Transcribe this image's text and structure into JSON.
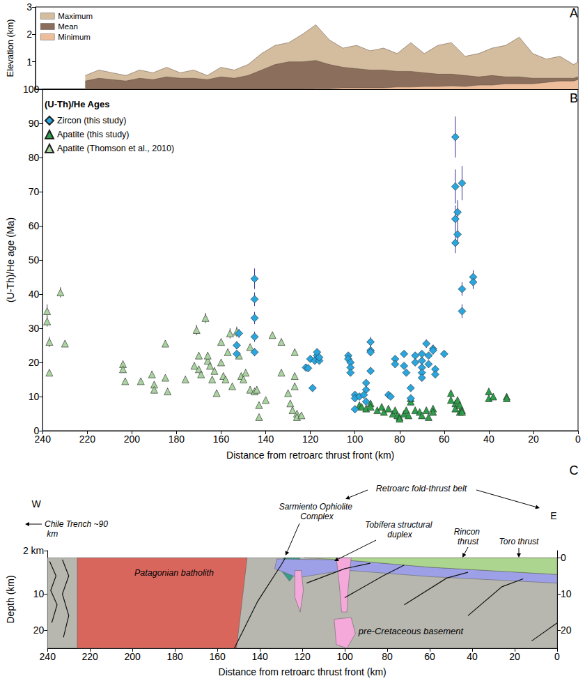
{
  "chart_data": [
    {
      "type": "area",
      "title": "A",
      "y_label": "Elevation (km)",
      "xlim": [
        240,
        0
      ],
      "ylim": [
        0,
        3
      ],
      "yticks": [
        1,
        2,
        3
      ],
      "tick_labels": "y",
      "grid": false,
      "legend": "top-left",
      "x": [
        218,
        212,
        206,
        200,
        194,
        188,
        182,
        176,
        170,
        164,
        158,
        152,
        146,
        140,
        134,
        128,
        122,
        116,
        110,
        104,
        98,
        92,
        86,
        80,
        74,
        68,
        62,
        56,
        50,
        44,
        38,
        32,
        26,
        20,
        14,
        8,
        2,
        0
      ],
      "series": [
        {
          "name": "Maximum",
          "color": "#d4bc9e",
          "values": [
            0.5,
            0.7,
            0.6,
            0.5,
            0.7,
            0.6,
            0.8,
            0.6,
            0.7,
            0.5,
            0.8,
            0.7,
            0.9,
            1.3,
            1.6,
            1.7,
            2.0,
            2.35,
            1.8,
            1.5,
            1.6,
            1.4,
            1.5,
            1.3,
            1.7,
            1.3,
            1.6,
            1.7,
            1.2,
            1.3,
            1.5,
            1.6,
            1.9,
            1.3,
            1.1,
            1.2,
            0.9,
            1.0
          ]
        },
        {
          "name": "Mean",
          "color": "#8b6e5c",
          "values": [
            0.3,
            0.4,
            0.35,
            0.3,
            0.4,
            0.35,
            0.45,
            0.4,
            0.4,
            0.35,
            0.45,
            0.4,
            0.5,
            0.7,
            0.9,
            1.0,
            1.0,
            1.05,
            0.9,
            0.8,
            0.75,
            0.7,
            0.7,
            0.65,
            0.65,
            0.6,
            0.55,
            0.55,
            0.5,
            0.45,
            0.5,
            0.45,
            0.45,
            0.4,
            0.4,
            0.4,
            0.4,
            0.45
          ]
        },
        {
          "name": "Minimum",
          "color": "#edbd9c",
          "values": [
            0,
            0,
            0,
            0,
            0,
            0,
            0,
            0,
            0,
            0,
            0,
            0,
            0,
            0,
            0,
            0,
            0,
            0.02,
            0.02,
            0.05,
            0.05,
            0.05,
            0.05,
            0.08,
            0.08,
            0.1,
            0.1,
            0.12,
            0.1,
            0.15,
            0.15,
            0.2,
            0.2,
            0.2,
            0.25,
            0.3,
            0.3,
            0.35
          ]
        }
      ]
    },
    {
      "type": "scatter",
      "title": "B",
      "x_label": "Distance from retroarc thrust front (km)",
      "y_label": "(U-Th)/He age (Ma)",
      "xlim": [
        240,
        0
      ],
      "xticks": [
        240,
        220,
        200,
        180,
        160,
        140,
        120,
        100,
        80,
        60,
        40,
        20,
        0
      ],
      "ylim": [
        0,
        100
      ],
      "yticks": [
        0,
        10,
        20,
        30,
        40,
        50,
        60,
        70,
        80,
        90,
        100
      ],
      "grid": false,
      "legend": "top-left",
      "annotations": [
        {
          "text": "(U-Th)/He Ages"
        }
      ],
      "series": [
        {
          "name": "Zircon (this study)",
          "color": "#2aa6de",
          "marker": "diamond",
          "x": [
            153,
            153,
            152,
            145,
            145,
            145,
            145,
            145,
            122,
            121,
            120,
            119,
            118,
            117,
            117,
            116,
            116,
            103,
            103,
            102,
            102,
            102,
            100,
            100,
            100,
            98,
            95,
            95,
            96,
            95,
            93,
            93,
            93,
            93,
            85,
            84,
            82,
            82,
            78,
            78,
            77,
            75,
            75,
            73,
            73,
            70,
            70,
            70,
            70,
            70,
            68,
            67,
            67,
            65,
            65,
            64,
            64,
            60,
            55,
            55,
            55,
            55,
            54,
            54,
            52,
            52,
            52,
            47,
            47
          ],
          "values": [
            22.5,
            25,
            28.5,
            44.5,
            38.5,
            33,
            27.5,
            23,
            18.5,
            18.3,
            21,
            12.5,
            20.5,
            22,
            23,
            20.5,
            21.5,
            22,
            21,
            20,
            18.5,
            17,
            10.5,
            9.5,
            6.3,
            10,
            14,
            12,
            10.5,
            8.5,
            26,
            23.5,
            23,
            17.5,
            10.5,
            10,
            21,
            19.5,
            22.5,
            19,
            17,
            12.5,
            9.5,
            22,
            20,
            22.5,
            20.5,
            18.5,
            17,
            15.5,
            25.5,
            22,
            19.5,
            24,
            23.5,
            18,
            16.5,
            22.5,
            86,
            71.5,
            62,
            55,
            64,
            57.5,
            72.5,
            41.5,
            35,
            45,
            43.5
          ],
          "errors": [
            1,
            1.2,
            1.3,
            3,
            2,
            1.8,
            1.5,
            1.2,
            1,
            1,
            1,
            0.8,
            1,
            1,
            1,
            1,
            1,
            1,
            1,
            1,
            1,
            1,
            0.8,
            0.8,
            0.6,
            0.8,
            0.8,
            0.8,
            0.8,
            0.7,
            1.5,
            1.2,
            1.2,
            1,
            0.8,
            0.8,
            1,
            1,
            1,
            1,
            1,
            0.8,
            0.8,
            1,
            1,
            1,
            1,
            1,
            1,
            1,
            1.2,
            1,
            1,
            1.2,
            1.2,
            1,
            1,
            1,
            6,
            5,
            4,
            3,
            3.5,
            3,
            5,
            2,
            2,
            2,
            2
          ]
        },
        {
          "name": "Apatite (this study)",
          "color": "#2e9e4a",
          "marker": "triangle",
          "x": [
            98,
            97,
            95,
            93,
            93,
            90,
            88,
            87,
            85,
            83,
            82,
            81,
            80,
            80,
            78,
            77,
            76,
            75,
            75,
            73,
            71,
            70,
            68,
            67,
            65,
            65,
            57,
            57,
            55,
            55,
            54,
            53,
            53,
            52,
            52,
            40,
            40,
            38,
            32,
            32
          ],
          "values": [
            7.5,
            7,
            6.5,
            8,
            7,
            6,
            7,
            5.5,
            6.5,
            5,
            6,
            4.5,
            4,
            3.5,
            5,
            6,
            4.5,
            8.5,
            9.5,
            6,
            5.5,
            4.5,
            6,
            4,
            6.5,
            5.5,
            11,
            9,
            8,
            6.5,
            9,
            7.5,
            5.5,
            6,
            5.5,
            11.5,
            9.5,
            10,
            10,
            9.5
          ],
          "errors": [
            0.5,
            0.5,
            0.5,
            0.6,
            0.5,
            0.5,
            0.5,
            0.5,
            0.5,
            0.5,
            0.5,
            0.5,
            0.4,
            0.4,
            0.5,
            0.5,
            0.5,
            0.6,
            0.8,
            0.5,
            0.5,
            0.5,
            0.5,
            0.4,
            0.5,
            0.5,
            0.8,
            0.8,
            0.6,
            0.5,
            0.8,
            0.6,
            0.5,
            0.5,
            0.5,
            0.8,
            0.8,
            0.8,
            0.8,
            0.8
          ]
        },
        {
          "name": "Apatite (Thomson et al., 2010)",
          "color": "#a9d4a0",
          "marker": "triangle",
          "x": [
            238,
            238,
            237,
            237,
            232,
            230,
            204,
            204,
            203,
            196,
            191,
            190,
            190,
            185,
            185,
            184,
            176,
            172,
            171,
            170,
            170,
            169,
            167,
            166,
            166,
            165,
            164,
            163,
            162,
            160,
            160,
            159,
            158,
            157,
            156,
            155,
            153,
            152,
            151,
            150,
            149,
            147,
            147,
            145,
            144,
            143,
            143,
            140,
            137,
            133,
            133,
            130,
            129,
            128,
            127,
            127,
            127,
            126,
            126,
            124
          ],
          "values": [
            35,
            32,
            26,
            17,
            40.5,
            25.5,
            19.5,
            18,
            14.5,
            14.5,
            16.5,
            13.5,
            12,
            25.5,
            15.5,
            11.5,
            15,
            19,
            29.5,
            22,
            18,
            16.5,
            33,
            20.5,
            22,
            19,
            15,
            17.5,
            11,
            26,
            20,
            16,
            15,
            23,
            28.5,
            13,
            29,
            22,
            16,
            15,
            17,
            24.5,
            12,
            11.5,
            12,
            7.5,
            4,
            9,
            28,
            26,
            17,
            11,
            8,
            6,
            23,
            16,
            13,
            5,
            4,
            4.5
          ],
          "errors": [
            2,
            1.5,
            1.5,
            1,
            1.5,
            1,
            1,
            1,
            1,
            1,
            1,
            1,
            1,
            1,
            1,
            1,
            1,
            1,
            1.5,
            1,
            1,
            1,
            1.5,
            1,
            1,
            1,
            1,
            1,
            1,
            1,
            1,
            1,
            1,
            1,
            1.5,
            1,
            1.5,
            1,
            1,
            1,
            1,
            1,
            1,
            1,
            1,
            0.8,
            0.6,
            0.8,
            1,
            1,
            1,
            1,
            0.8,
            0.6,
            1,
            1,
            1,
            0.6,
            0.6,
            0.6
          ]
        }
      ]
    },
    {
      "type": "cross_section",
      "title": "C",
      "x_label": "Distance from retroarc thrust front (km)",
      "y_label": "Depth (km)",
      "xlim": [
        240,
        0
      ],
      "xticks": [
        240,
        220,
        200,
        180,
        160,
        140,
        120,
        100,
        80,
        60,
        40,
        20,
        0
      ],
      "ylim": [
        25,
        -2
      ],
      "yticks": [
        {
          "value": -2,
          "label": "2 km"
        },
        0,
        10,
        20
      ],
      "y2lim": [
        25,
        -2
      ],
      "y2ticks": [
        0,
        10,
        20
      ],
      "grid": false,
      "annotations": [
        {
          "text": "W"
        },
        {
          "text": "E"
        },
        {
          "text": "Retroarc fold-thrust belt"
        },
        {
          "text": "Chile Trench ~90 km"
        },
        {
          "text": "Patagonian batholith"
        },
        {
          "text": "Sarmiento Ophiolite Complex"
        },
        {
          "text": "Tobífera structural duplex"
        },
        {
          "text": "Rincon thrust"
        },
        {
          "text": "Toro thrust"
        },
        {
          "text": "pre-Cretaceous basement"
        }
      ]
    }
  ]
}
